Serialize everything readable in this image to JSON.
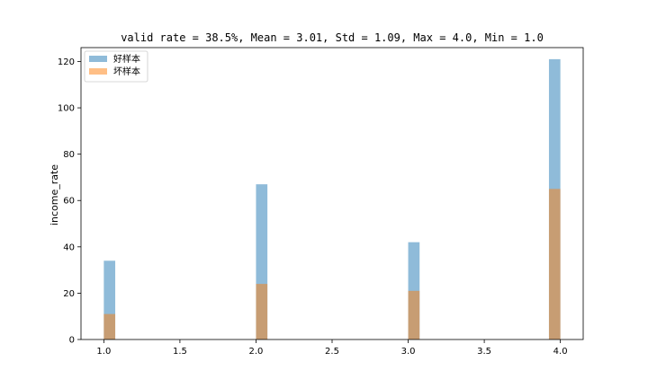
{
  "chart_data": {
    "type": "bar",
    "title": "valid rate = 38.5%, Mean = 3.01, Std = 1.09, Max = 4.0, Min = 1.0",
    "xlabel": "",
    "ylabel": "income_rate",
    "xlim": [
      0.85,
      4.15
    ],
    "ylim": [
      0,
      126
    ],
    "x_ticks": [
      1.0,
      1.5,
      2.0,
      2.5,
      3.0,
      3.5,
      4.0
    ],
    "y_ticks": [
      0,
      20,
      40,
      60,
      80,
      100,
      120
    ],
    "bin_width": 0.075,
    "grid": false,
    "legend_position": "top-left",
    "series": [
      {
        "name": "好样本",
        "color": "#1f77b4",
        "opacity": 0.5,
        "bins": [
          {
            "x": 1.0,
            "value": 34
          },
          {
            "x": 1.45,
            "value": 0
          },
          {
            "x": 2.0,
            "value": 67
          },
          {
            "x": 2.5,
            "value": 0
          },
          {
            "x": 3.0,
            "value": 42
          },
          {
            "x": 3.5,
            "value": 0
          },
          {
            "x": 3.925,
            "value": 121
          }
        ]
      },
      {
        "name": "坏样本",
        "color": "#ff7f0e",
        "opacity": 0.5,
        "bins": [
          {
            "x": 1.0,
            "value": 11
          },
          {
            "x": 1.45,
            "value": 0
          },
          {
            "x": 2.0,
            "value": 24
          },
          {
            "x": 2.5,
            "value": 0
          },
          {
            "x": 3.0,
            "value": 21
          },
          {
            "x": 3.5,
            "value": 0
          },
          {
            "x": 3.925,
            "value": 65
          }
        ]
      }
    ]
  }
}
